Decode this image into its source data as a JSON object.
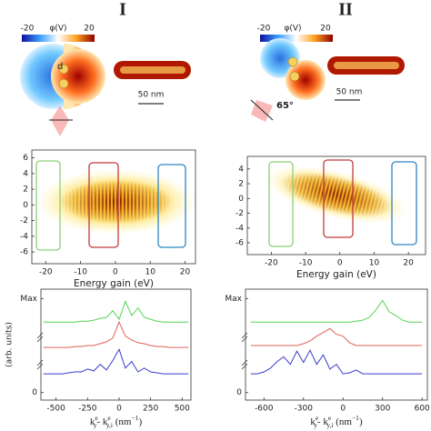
{
  "top": [
    {
      "panel": "I",
      "colorbar_label": "φ(V)",
      "colorbar_ticks": [
        -20,
        20
      ],
      "gap_label": "d",
      "scale_label": "50 nm"
    },
    {
      "panel": "II",
      "colorbar_label": "φ(V)",
      "colorbar_ticks": [
        -20,
        20
      ],
      "scale_label": "50 nm",
      "angle_label": "65°"
    }
  ],
  "chart_data": [
    {
      "type": "heatmap",
      "xlabel": "Energy gain (eV)",
      "xlim": [
        -24,
        23
      ],
      "xticks": [
        -20,
        -10,
        0,
        10,
        20
      ],
      "ylim": [
        -7.5,
        7
      ],
      "yticks": [
        6,
        4,
        2,
        0,
        -2,
        -4,
        -6
      ]
    },
    {
      "type": "heatmap",
      "xlabel": "Energy gain (eV)",
      "xlim": [
        -27,
        25
      ],
      "xticks": [
        -20,
        -10,
        0,
        10,
        20
      ],
      "ylim": [
        -7.6,
        5.7
      ],
      "yticks": [
        4,
        2,
        0,
        -2,
        -4,
        -6
      ]
    },
    {
      "type": "line",
      "ylabel": "(arb. units)",
      "xlabel": [
        {
          "text": "k",
          "style": "base"
        },
        {
          "text": "e",
          "style": "sup"
        },
        {
          "text": "y",
          "style": "sub"
        },
        {
          "text": "- k",
          "style": "base"
        },
        {
          "text": "e",
          "style": "sup"
        },
        {
          "text": "y,i",
          "style": "sub"
        },
        {
          "text": " (nm",
          "style": "base"
        },
        {
          "text": "−1",
          "style": "sup"
        },
        {
          "text": ")",
          "style": "base"
        }
      ],
      "xlim": [
        -620,
        570
      ],
      "xticks": [
        -500,
        -250,
        0,
        250,
        500
      ],
      "ylim": [
        -0.08,
        1.1
      ],
      "yticks": [
        {
          "value": 1,
          "label": "Max"
        },
        0
      ],
      "x": [
        -600,
        -550,
        -500,
        -450,
        -400,
        -350,
        -300,
        -250,
        -200,
        -150,
        -100,
        -50,
        0,
        50,
        100,
        150,
        200,
        250,
        300,
        350,
        400,
        450,
        500,
        550
      ],
      "series": [
        {
          "color": "#55d455",
          "values": [
            0.75,
            0.75,
            0.75,
            0.75,
            0.75,
            0.75,
            0.76,
            0.76,
            0.77,
            0.79,
            0.8,
            0.87,
            0.78,
            0.97,
            0.82,
            0.9,
            0.8,
            0.78,
            0.76,
            0.75,
            0.75,
            0.75,
            0.75,
            0.75
          ]
        },
        {
          "color": "#e0605a",
          "values": [
            0.48,
            0.48,
            0.48,
            0.48,
            0.48,
            0.49,
            0.49,
            0.5,
            0.5,
            0.52,
            0.54,
            0.58,
            0.75,
            0.6,
            0.56,
            0.53,
            0.52,
            0.5,
            0.49,
            0.49,
            0.48,
            0.48,
            0.48,
            0.48
          ]
        },
        {
          "color": "#3a3ad0",
          "values": [
            0.2,
            0.2,
            0.2,
            0.2,
            0.21,
            0.22,
            0.22,
            0.25,
            0.23,
            0.3,
            0.24,
            0.34,
            0.46,
            0.26,
            0.33,
            0.22,
            0.26,
            0.22,
            0.21,
            0.2,
            0.2,
            0.2,
            0.2,
            0.2
          ]
        }
      ]
    },
    {
      "type": "line",
      "xlabel": [
        {
          "text": "k",
          "style": "base"
        },
        {
          "text": "e",
          "style": "sup"
        },
        {
          "text": "y",
          "style": "sub"
        },
        {
          "text": "- k",
          "style": "base"
        },
        {
          "text": "e",
          "style": "sup"
        },
        {
          "text": "y,i",
          "style": "sub"
        },
        {
          "text": " (nm",
          "style": "base"
        },
        {
          "text": "−1",
          "style": "sup"
        },
        {
          "text": ")",
          "style": "base"
        }
      ],
      "xlim": [
        -740,
        640
      ],
      "xticks": [
        -600,
        -300,
        0,
        300,
        600
      ],
      "ylim": [
        -0.08,
        1.1
      ],
      "yticks": [
        {
          "value": 1,
          "label": "Max"
        },
        0
      ],
      "x": [
        -700,
        -650,
        -600,
        -550,
        -500,
        -450,
        -400,
        -350,
        -300,
        -250,
        -200,
        -150,
        -100,
        -50,
        0,
        50,
        100,
        150,
        200,
        250,
        300,
        350,
        400,
        450,
        500,
        550,
        600
      ],
      "series": [
        {
          "color": "#55d455",
          "values": [
            0.75,
            0.75,
            0.75,
            0.75,
            0.75,
            0.75,
            0.75,
            0.75,
            0.75,
            0.75,
            0.75,
            0.75,
            0.75,
            0.75,
            0.75,
            0.75,
            0.76,
            0.77,
            0.8,
            0.88,
            0.98,
            0.86,
            0.82,
            0.77,
            0.75,
            0.75,
            0.75
          ]
        },
        {
          "color": "#e0605a",
          "values": [
            0.5,
            0.5,
            0.5,
            0.5,
            0.5,
            0.5,
            0.5,
            0.5,
            0.52,
            0.55,
            0.6,
            0.64,
            0.68,
            0.62,
            0.6,
            0.53,
            0.5,
            0.5,
            0.5,
            0.5,
            0.5,
            0.5,
            0.5,
            0.5,
            0.5,
            0.5,
            0.5
          ]
        },
        {
          "color": "#3a3ad0",
          "values": [
            0.2,
            0.2,
            0.22,
            0.26,
            0.33,
            0.38,
            0.3,
            0.44,
            0.32,
            0.45,
            0.3,
            0.4,
            0.25,
            0.3,
            0.2,
            0.21,
            0.24,
            0.2,
            0.2,
            0.2,
            0.2,
            0.2,
            0.2,
            0.2,
            0.2,
            0.2,
            0.2
          ]
        }
      ]
    }
  ]
}
